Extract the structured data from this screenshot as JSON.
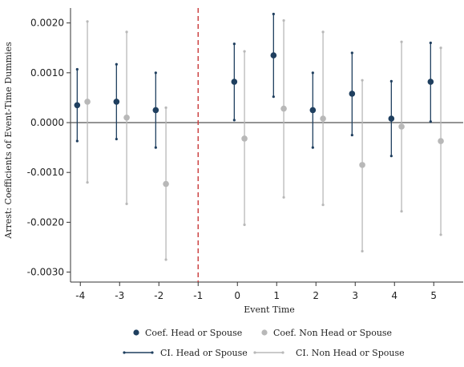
{
  "chart_data": {
    "type": "scatter",
    "xlabel": "Event Time",
    "ylabel": "Arrest: Coefficients of Event-Time Dummies",
    "x": [
      -4,
      -3,
      -2,
      0,
      1,
      2,
      3,
      4,
      5
    ],
    "x_ticks": [
      -4,
      -3,
      -2,
      -1,
      0,
      1,
      2,
      3,
      4,
      5
    ],
    "y_ticks": [
      0.002,
      0.001,
      0.0,
      -0.001,
      -0.002,
      -0.003
    ],
    "y_tick_labels": [
      "0.0020",
      "0.0010",
      "0.0000",
      "-0.0010",
      "-0.0020",
      "-0.0030"
    ],
    "xlim": [
      -4.25,
      5.75
    ],
    "ylim": [
      -0.0032,
      0.0023
    ],
    "reference_lines": {
      "horizontal_y": 0.0,
      "vertical_x": -1,
      "vertical_style": "dashed",
      "vertical_color": "#cc4444"
    },
    "grid": false,
    "series": [
      {
        "name": "Coef. Head or Spouse",
        "ci_name": "CI. Head or Spouse",
        "color": "#1f3f5f",
        "offset": -0.08,
        "values": [
          0.00035,
          0.00042,
          0.00025,
          0.00082,
          0.00135,
          0.00025,
          0.00058,
          8e-05,
          0.00082
        ],
        "ci_low": [
          -0.00037,
          -0.00033,
          -0.0005,
          5e-05,
          0.00052,
          -0.0005,
          -0.00025,
          -0.00067,
          2e-05
        ],
        "ci_high": [
          0.00107,
          0.00117,
          0.001,
          0.00158,
          0.00218,
          0.001,
          0.0014,
          0.00083,
          0.0016
        ]
      },
      {
        "name": "Coef. Non Head or Spouse",
        "ci_name": "CI. Non Head or Spouse",
        "color": "#b8b8b8",
        "offset": 0.18,
        "values": [
          0.00042,
          0.0001,
          -0.00123,
          -0.00032,
          0.00028,
          8e-05,
          -0.00085,
          -8e-05,
          -0.00037
        ],
        "ci_low": [
          -0.0012,
          -0.00163,
          -0.00275,
          -0.00205,
          -0.0015,
          -0.00165,
          -0.00258,
          -0.00178,
          -0.00225
        ],
        "ci_high": [
          0.00203,
          0.00182,
          0.0003,
          0.00143,
          0.00205,
          0.00182,
          0.00085,
          0.00162,
          0.0015
        ]
      }
    ],
    "legend": {
      "placement": "bottom"
    }
  }
}
